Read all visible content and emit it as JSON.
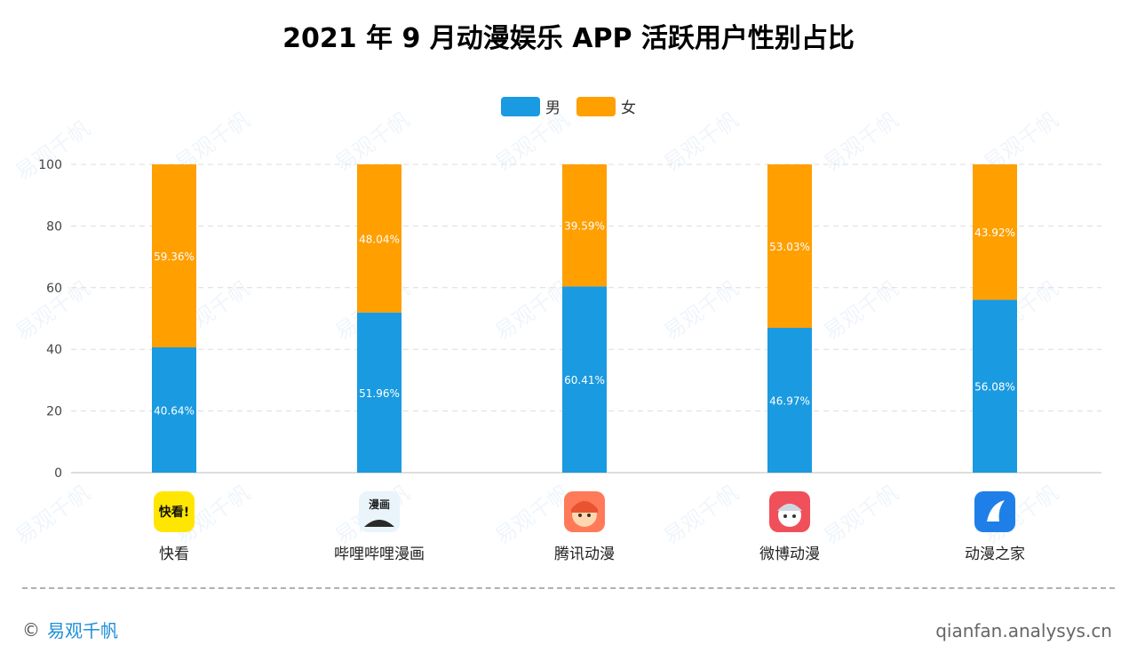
{
  "title": "2021 年 9 月动漫娱乐 APP 活跃用户性别占比",
  "legend": [
    {
      "label": "男",
      "color": "#1a9ae0"
    },
    {
      "label": "女",
      "color": "#ff9f00"
    }
  ],
  "chart_data": {
    "type": "bar",
    "stacked": true,
    "categories": [
      "快看",
      "哔哩哔哩漫画",
      "腾讯动漫",
      "微博动漫",
      "动漫之家"
    ],
    "series": [
      {
        "name": "男",
        "values": [
          40.64,
          51.96,
          60.41,
          46.97,
          56.08
        ],
        "labels": [
          "40.64%",
          "51.96%",
          "60.41%",
          "46.97%",
          "56.08%"
        ],
        "color": "#1a9ae0"
      },
      {
        "name": "女",
        "values": [
          59.36,
          48.04,
          39.59,
          53.03,
          43.92
        ],
        "labels": [
          "59.36%",
          "48.04%",
          "39.59%",
          "53.03%",
          "43.92%"
        ],
        "color": "#ff9f00"
      }
    ],
    "ylim": [
      0,
      100
    ],
    "yticks": [
      0,
      20,
      40,
      60,
      80,
      100
    ],
    "grid": true,
    "legend_position": "top-center"
  },
  "apps": [
    {
      "name": "快看",
      "icon": "kuaikan-icon",
      "icon_text": "快看!",
      "bg": "#ffe600",
      "fg": "#111111"
    },
    {
      "name": "哔哩哔哩漫画",
      "icon": "bilibili-comics-icon",
      "icon_text": "漫画",
      "bg": "#e9f4fb",
      "fg": "#222222"
    },
    {
      "name": "腾讯动漫",
      "icon": "tencent-comics-icon",
      "icon_text": "",
      "bg": "#ff7a59",
      "fg": "#ffffff"
    },
    {
      "name": "微博动漫",
      "icon": "weibo-comics-icon",
      "icon_text": "",
      "bg": "#f0505a",
      "fg": "#ffffff"
    },
    {
      "name": "动漫之家",
      "icon": "dmzj-icon",
      "icon_text": "",
      "bg": "#1f7fe8",
      "fg": "#ffffff"
    }
  ],
  "footer": {
    "copyright_symbol": "©",
    "brand": "易观千帆",
    "site": "qianfan.analysys.cn"
  },
  "watermark": {
    "text": "易观千帆",
    "sub": "qianfan.analysys.cn"
  }
}
